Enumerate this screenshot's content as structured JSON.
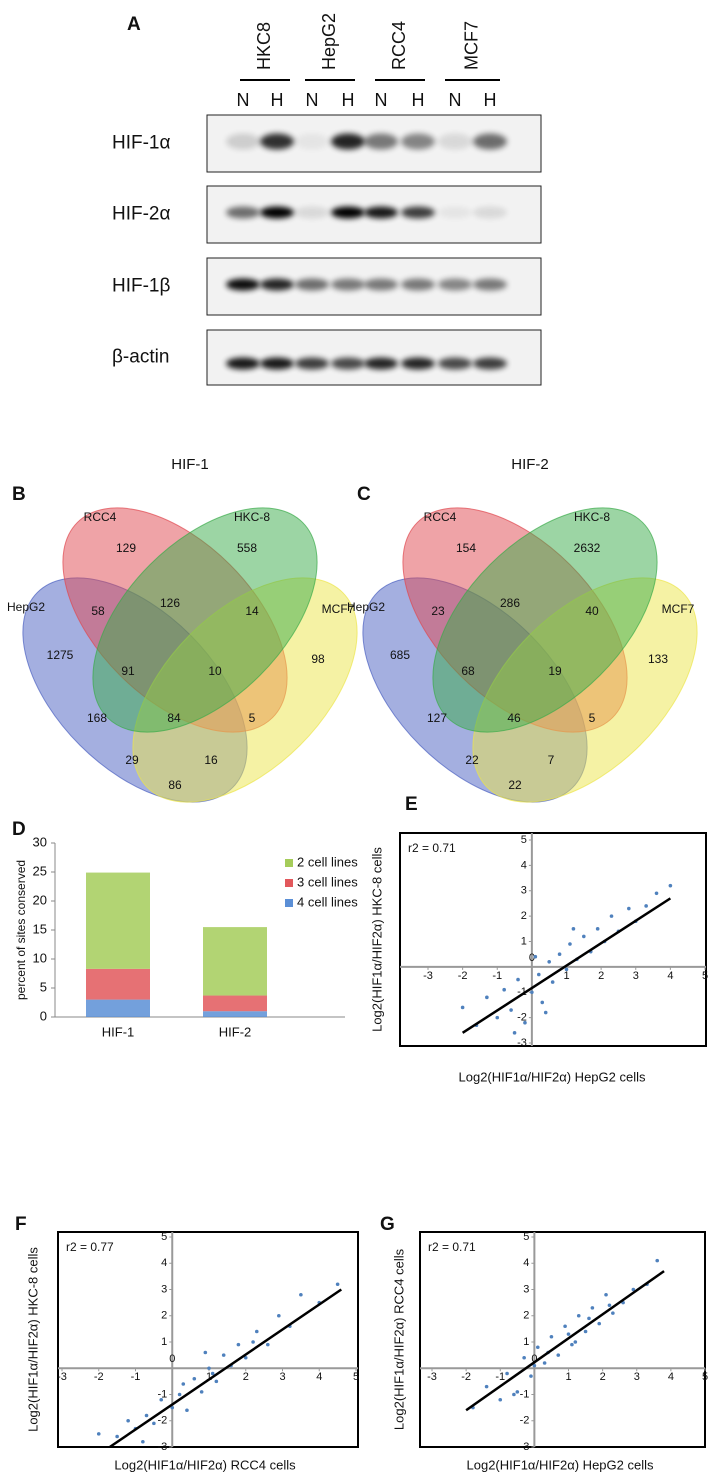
{
  "panel_labels": [
    "A",
    "B",
    "C",
    "D",
    "E",
    "F",
    "G"
  ],
  "blot": {
    "cell_lines": [
      "HKC8",
      "HepG2",
      "RCC4",
      "MCF7"
    ],
    "conditions": [
      "N",
      "H",
      "N",
      "H",
      "N",
      "H",
      "N",
      "H"
    ],
    "proteins": [
      "HIF-1α",
      "HIF-2α",
      "HIF-1β",
      "β-actin"
    ]
  },
  "venn_diagrams": [
    {
      "title": "HIF-1",
      "sets": [
        "RCC4",
        "HKC-8",
        "HepG2",
        "MCF7"
      ],
      "counts": [
        129,
        558,
        58,
        126,
        14,
        1275,
        91,
        10,
        98,
        168,
        84,
        5,
        29,
        16,
        86
      ]
    },
    {
      "title": "HIF-2",
      "sets": [
        "RCC4",
        "HKC-8",
        "HepG2",
        "MCF7"
      ],
      "counts": [
        154,
        2632,
        23,
        286,
        40,
        685,
        68,
        19,
        133,
        127,
        46,
        5,
        22,
        7,
        22
      ]
    }
  ],
  "chart_data": [
    {
      "type": "bar",
      "stacked": true,
      "y_label": "percent of sites conserved",
      "categories": [
        "HIF-1",
        "HIF-2"
      ],
      "series": [
        {
          "name": "4 cell lines",
          "color": "#5b8fd6",
          "values": [
            3,
            1
          ]
        },
        {
          "name": "3 cell lines",
          "color": "#e2585c",
          "values": [
            5.3,
            2.7
          ]
        },
        {
          "name": "2 cell lines",
          "color": "#a5cc5a",
          "values": [
            16.6,
            11.8
          ]
        }
      ],
      "ylim": [
        0,
        30
      ],
      "yticks": [
        0,
        5,
        10,
        15,
        20,
        25,
        30
      ],
      "legend": "upper right"
    },
    {
      "type": "scatter",
      "annotation": "r2 = 0.71",
      "x_label": "Log2(HIF1α/HIF2α) HepG2 cells",
      "y_label": "Log2(HIF1α/HIF2α) HKC-8 cells",
      "color": "#4f81bd",
      "x": [
        -2.0,
        -1.6,
        -1.3,
        -1.0,
        -0.8,
        -0.6,
        -0.4,
        -0.2,
        0,
        0.2,
        0.3,
        0.5,
        0.6,
        0.8,
        1.0,
        1.1,
        1.3,
        1.5,
        1.7,
        1.9,
        2.1,
        2.3,
        2.5,
        2.8,
        3.0,
        3.3,
        3.6,
        4.0,
        -0.5,
        0.4,
        1.2,
        0.1
      ],
      "y": [
        -1.6,
        -2.3,
        -1.2,
        -2.0,
        -0.9,
        -1.7,
        -0.5,
        -2.2,
        -1.0,
        -0.3,
        -1.4,
        0.2,
        -0.6,
        0.5,
        -0.1,
        0.9,
        0.3,
        1.2,
        0.6,
        1.5,
        1.0,
        2.0,
        1.4,
        2.3,
        1.8,
        2.4,
        2.9,
        3.2,
        -2.6,
        -1.8,
        1.5,
        0.4
      ],
      "trendline": {
        "x": [
          -2,
          4
        ],
        "y": [
          -2.6,
          2.7
        ]
      },
      "xlim": [
        -3,
        5
      ],
      "ylim": [
        -3,
        5
      ],
      "xticks": [
        -3,
        -2,
        -1,
        0,
        1,
        2,
        3,
        4,
        5
      ],
      "yticks": [
        -3,
        -2,
        -1,
        1,
        2,
        3,
        4,
        5
      ]
    },
    {
      "type": "scatter",
      "annotation": "r2 = 0.77",
      "x_label": "Log2(HIF1α/HIF2α) RCC4 cells",
      "y_label": "Log2(HIF1α/HIF2α) HKC-8 cells",
      "color": "#4f81bd",
      "x": [
        -2.0,
        -1.5,
        -1.2,
        -1.0,
        -0.7,
        -0.5,
        -0.3,
        0,
        0.2,
        0.4,
        0.6,
        0.8,
        1.0,
        1.2,
        1.4,
        1.6,
        1.8,
        2.0,
        2.3,
        2.6,
        2.9,
        3.2,
        3.5,
        4.0,
        4.5,
        -0.8,
        0.3,
        1.1,
        2.2,
        0.9
      ],
      "y": [
        -2.5,
        -2.6,
        -2.0,
        -2.3,
        -1.8,
        -2.1,
        -1.2,
        -1.5,
        -1.0,
        -1.6,
        -0.4,
        -0.9,
        0,
        -0.5,
        0.5,
        0.1,
        0.9,
        0.4,
        1.4,
        0.9,
        2.0,
        1.6,
        2.8,
        2.5,
        3.2,
        -2.8,
        -0.6,
        -0.2,
        1.0,
        0.6
      ],
      "trendline": {
        "x": [
          -1.7,
          4.6
        ],
        "y": [
          -3,
          3
        ]
      },
      "xlim": [
        -3,
        5
      ],
      "ylim": [
        -3,
        5
      ],
      "xticks": [
        -3,
        -2,
        -1,
        0,
        1,
        2,
        3,
        4,
        5
      ],
      "yticks": [
        -3,
        -2,
        -1,
        1,
        2,
        3,
        4,
        5
      ]
    },
    {
      "type": "scatter",
      "annotation": "r2 = 0.71",
      "x_label": "Log2(HIF1α/HIF2α) HepG2 cells",
      "y_label": "Log2(HIF1α/HIF2α) RCC4 cells",
      "color": "#4f81bd",
      "x": [
        -1.8,
        -1.4,
        -1.0,
        -0.8,
        -0.5,
        -0.3,
        -0.1,
        0.1,
        0.3,
        0.5,
        0.7,
        0.9,
        1.1,
        1.3,
        1.5,
        1.7,
        1.9,
        2.1,
        2.3,
        2.6,
        2.9,
        3.3,
        3.6,
        -0.6,
        0.4,
        1.0,
        1.6,
        2.2,
        0.0,
        1.2
      ],
      "y": [
        -1.5,
        -0.7,
        -1.2,
        -0.2,
        -0.9,
        0.4,
        -0.3,
        0.8,
        0.2,
        1.2,
        0.5,
        1.6,
        0.9,
        2.0,
        1.4,
        2.3,
        1.7,
        2.8,
        2.1,
        2.5,
        3.0,
        3.2,
        4.1,
        -1.0,
        0.6,
        1.3,
        1.9,
        2.4,
        0.1,
        1.0
      ],
      "trendline": {
        "x": [
          -2,
          3.8
        ],
        "y": [
          -1.6,
          3.7
        ]
      },
      "xlim": [
        -3,
        5
      ],
      "ylim": [
        -3,
        5
      ],
      "xticks": [
        -3,
        -2,
        -1,
        0,
        1,
        2,
        3,
        4,
        5
      ],
      "yticks": [
        -3,
        -2,
        -1,
        1,
        2,
        3,
        4,
        5
      ]
    }
  ]
}
